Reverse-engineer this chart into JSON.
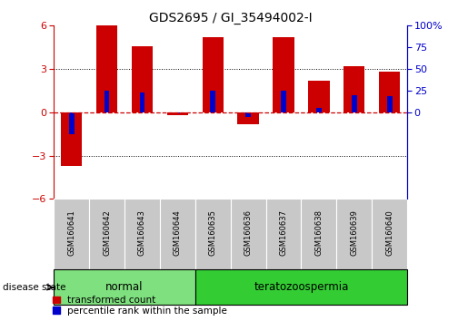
{
  "title": "GDS2695 / GI_35494002-I",
  "samples": [
    "GSM160641",
    "GSM160642",
    "GSM160643",
    "GSM160644",
    "GSM160635",
    "GSM160636",
    "GSM160637",
    "GSM160638",
    "GSM160639",
    "GSM160640"
  ],
  "red_values": [
    -3.7,
    6.0,
    4.6,
    -0.2,
    5.2,
    -0.8,
    5.2,
    2.2,
    3.2,
    2.8
  ],
  "blue_values": [
    -1.5,
    1.5,
    1.4,
    -0.1,
    1.5,
    -0.3,
    1.5,
    0.3,
    1.2,
    1.1
  ],
  "groups": [
    {
      "label": "normal",
      "indices": [
        0,
        1,
        2,
        3
      ],
      "color": "#7EE07E"
    },
    {
      "label": "teratozoospermia",
      "indices": [
        4,
        5,
        6,
        7,
        8,
        9
      ],
      "color": "#33CC33"
    }
  ],
  "ylim": [
    -6,
    6
  ],
  "yticks_left": [
    -6,
    -3,
    0,
    3,
    6
  ],
  "yticks_right": [
    0,
    25,
    50,
    75,
    100
  ],
  "ylabel_left_color": "#CC0000",
  "ylabel_right_color": "#0000CC",
  "bar_width": 0.6,
  "blue_bar_width": 0.15,
  "red_color": "#CC0000",
  "blue_color": "#0000CC",
  "zero_line_color": "#CC0000",
  "grid_color": "#000000",
  "background_color": "#FFFFFF",
  "sample_box_color": "#C8C8C8",
  "legend_red_label": "transformed count",
  "legend_blue_label": "percentile rank within the sample",
  "disease_state_label": "disease state",
  "right_ytick_labels": [
    "0",
    "25",
    "50",
    "75",
    "100%"
  ]
}
